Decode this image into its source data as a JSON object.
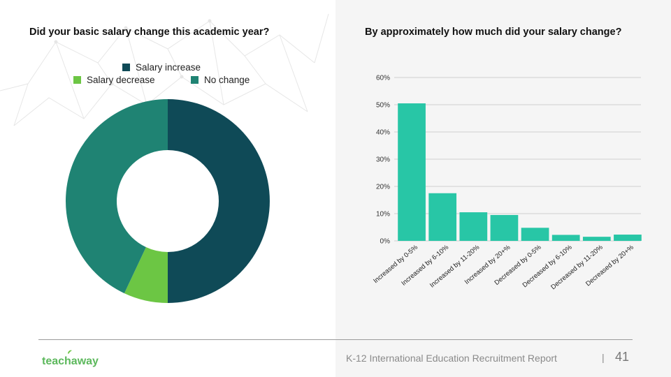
{
  "left_chart": {
    "title": "Did your basic salary change this academic year?",
    "legend": [
      {
        "label": "Salary increase",
        "color": "#0f4a57"
      },
      {
        "label": "Salary decrease",
        "color": "#6cc644"
      },
      {
        "label": "No change",
        "color": "#1f8373"
      }
    ]
  },
  "right_chart": {
    "title": "By approximately how much did your salary change?"
  },
  "chart_data": [
    {
      "type": "pie",
      "title": "Did your basic salary change this academic year?",
      "labels": [
        "Salary increase",
        "Salary decrease",
        "No change"
      ],
      "values": [
        50,
        7,
        43
      ],
      "colors": [
        "#0f4a57",
        "#6cc644",
        "#1f8373"
      ],
      "donut": true
    },
    {
      "type": "bar",
      "title": "By approximately how much did your salary change?",
      "categories": [
        "Increased by 0-5%",
        "Increased by 6-10%",
        "Increased by 11-20%",
        "Increased by 20+%",
        "Decreased by 0-5%",
        "Decreased by 6-10%",
        "Decreased by 11-20%",
        "Decreased by 20+%"
      ],
      "values": [
        50.5,
        17.5,
        10.5,
        9.5,
        4.8,
        2.2,
        1.5,
        2.3
      ],
      "ylim": [
        0,
        60
      ],
      "yticks": [
        "0%",
        "10%",
        "20%",
        "30%",
        "40%",
        "50%",
        "60%"
      ],
      "color": "#28c6a6",
      "grid": true
    }
  ],
  "footer": {
    "logo_text": "teachaway",
    "report_title": "K-12 International Education Recruitment Report",
    "separator": "|",
    "page_number": "41"
  }
}
